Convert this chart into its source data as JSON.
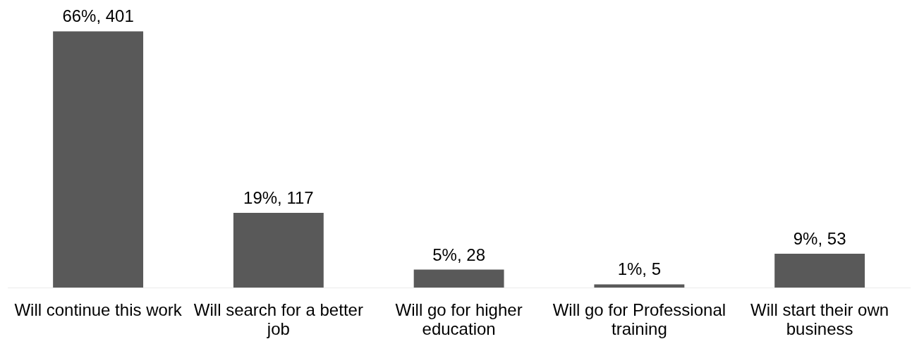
{
  "chart_data": {
    "type": "bar",
    "categories": [
      "Will continue this work",
      "Will search for a better job",
      "Will go for higher education",
      "Will go for Professional training",
      "Will start their own business"
    ],
    "values": [
      401,
      117,
      28,
      5,
      53
    ],
    "value_labels": [
      "66%, 401",
      "19%, 117",
      "5%, 28",
      "1%, 5",
      "9%, 53"
    ],
    "color": "#595959",
    "tick_labels": "x",
    "grid": false,
    "legend": false
  }
}
